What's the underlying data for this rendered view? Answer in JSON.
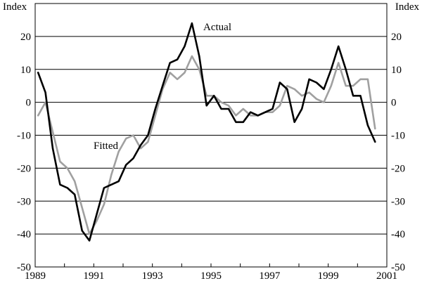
{
  "chart_data": {
    "type": "line",
    "title": "",
    "xlabel": "",
    "ylabel": "",
    "y_unit_left": "Index",
    "y_unit_right": "Index",
    "xlim": [
      1989.0,
      2001.0
    ],
    "ylim": [
      -50,
      30
    ],
    "y_ticks": [
      20,
      10,
      0,
      -10,
      -20,
      -30,
      -40,
      -50
    ],
    "y_tick_labels": [
      "20",
      "10",
      "0",
      "-10",
      "-20",
      "-30",
      "-40",
      "-50"
    ],
    "x_ticks": [
      1989,
      1991,
      1993,
      1995,
      1997,
      1999,
      2001
    ],
    "x_tick_labels": [
      "1989",
      "1991",
      "1993",
      "1995",
      "1997",
      "1999",
      "2001"
    ],
    "grid": "horizontal",
    "legend": "none",
    "annotations": [
      {
        "text": "Actual",
        "series": "Actual"
      },
      {
        "text": "Fitted",
        "series": "Fitted"
      }
    ],
    "series": [
      {
        "name": "Actual",
        "color": "#000000",
        "x": [
          1989.1,
          1989.35,
          1989.6,
          1989.85,
          1990.1,
          1990.35,
          1990.6,
          1990.85,
          1991.1,
          1991.35,
          1991.6,
          1991.85,
          1992.1,
          1992.35,
          1992.6,
          1992.85,
          1993.1,
          1993.35,
          1993.6,
          1993.85,
          1994.1,
          1994.35,
          1994.6,
          1994.85,
          1995.1,
          1995.35,
          1995.6,
          1995.85,
          1996.1,
          1996.35,
          1996.6,
          1996.85,
          1997.1,
          1997.35,
          1997.6,
          1997.85,
          1998.1,
          1998.35,
          1998.6,
          1998.85,
          1999.1,
          1999.35,
          1999.6,
          1999.85,
          2000.1,
          2000.35,
          2000.6
        ],
        "y": [
          9,
          3,
          -14,
          -25,
          -26,
          -28,
          -39,
          -42,
          -34,
          -26,
          -25,
          -24,
          -19,
          -17,
          -13,
          -10,
          -2,
          5,
          12,
          13,
          17,
          24,
          14,
          -1,
          2,
          -2,
          -2,
          -6,
          -6,
          -3,
          -4,
          -3,
          -2,
          6,
          4,
          -6,
          -2,
          7,
          6,
          4,
          10,
          17,
          10,
          2,
          2,
          -7,
          -12
        ]
      },
      {
        "name": "Fitted",
        "color": "#a0a0a0",
        "x": [
          1989.1,
          1989.35,
          1989.6,
          1989.85,
          1990.1,
          1990.35,
          1990.6,
          1990.85,
          1991.1,
          1991.35,
          1991.6,
          1991.85,
          1992.1,
          1992.35,
          1992.6,
          1992.85,
          1993.1,
          1993.35,
          1993.6,
          1993.85,
          1994.1,
          1994.35,
          1994.6,
          1994.85,
          1995.1,
          1995.35,
          1995.6,
          1995.85,
          1996.1,
          1996.35,
          1996.6,
          1996.85,
          1997.1,
          1997.35,
          1997.6,
          1997.85,
          1998.1,
          1998.35,
          1998.6,
          1998.85,
          1999.1,
          1999.35,
          1999.6,
          1999.85,
          2000.1,
          2000.35,
          2000.6
        ],
        "y": [
          -4,
          0,
          -9,
          -18,
          -20,
          -24,
          -32,
          -40,
          -36,
          -31,
          -22,
          -15,
          -11,
          -10,
          -14,
          -12,
          -4,
          4,
          9,
          7,
          9,
          14,
          10,
          2,
          2,
          0,
          -1,
          -4,
          -2,
          -4,
          -4,
          -3,
          -3,
          -1,
          5,
          4,
          2,
          3,
          1,
          0,
          5,
          12,
          5,
          5,
          7,
          7,
          -8
        ]
      }
    ]
  }
}
